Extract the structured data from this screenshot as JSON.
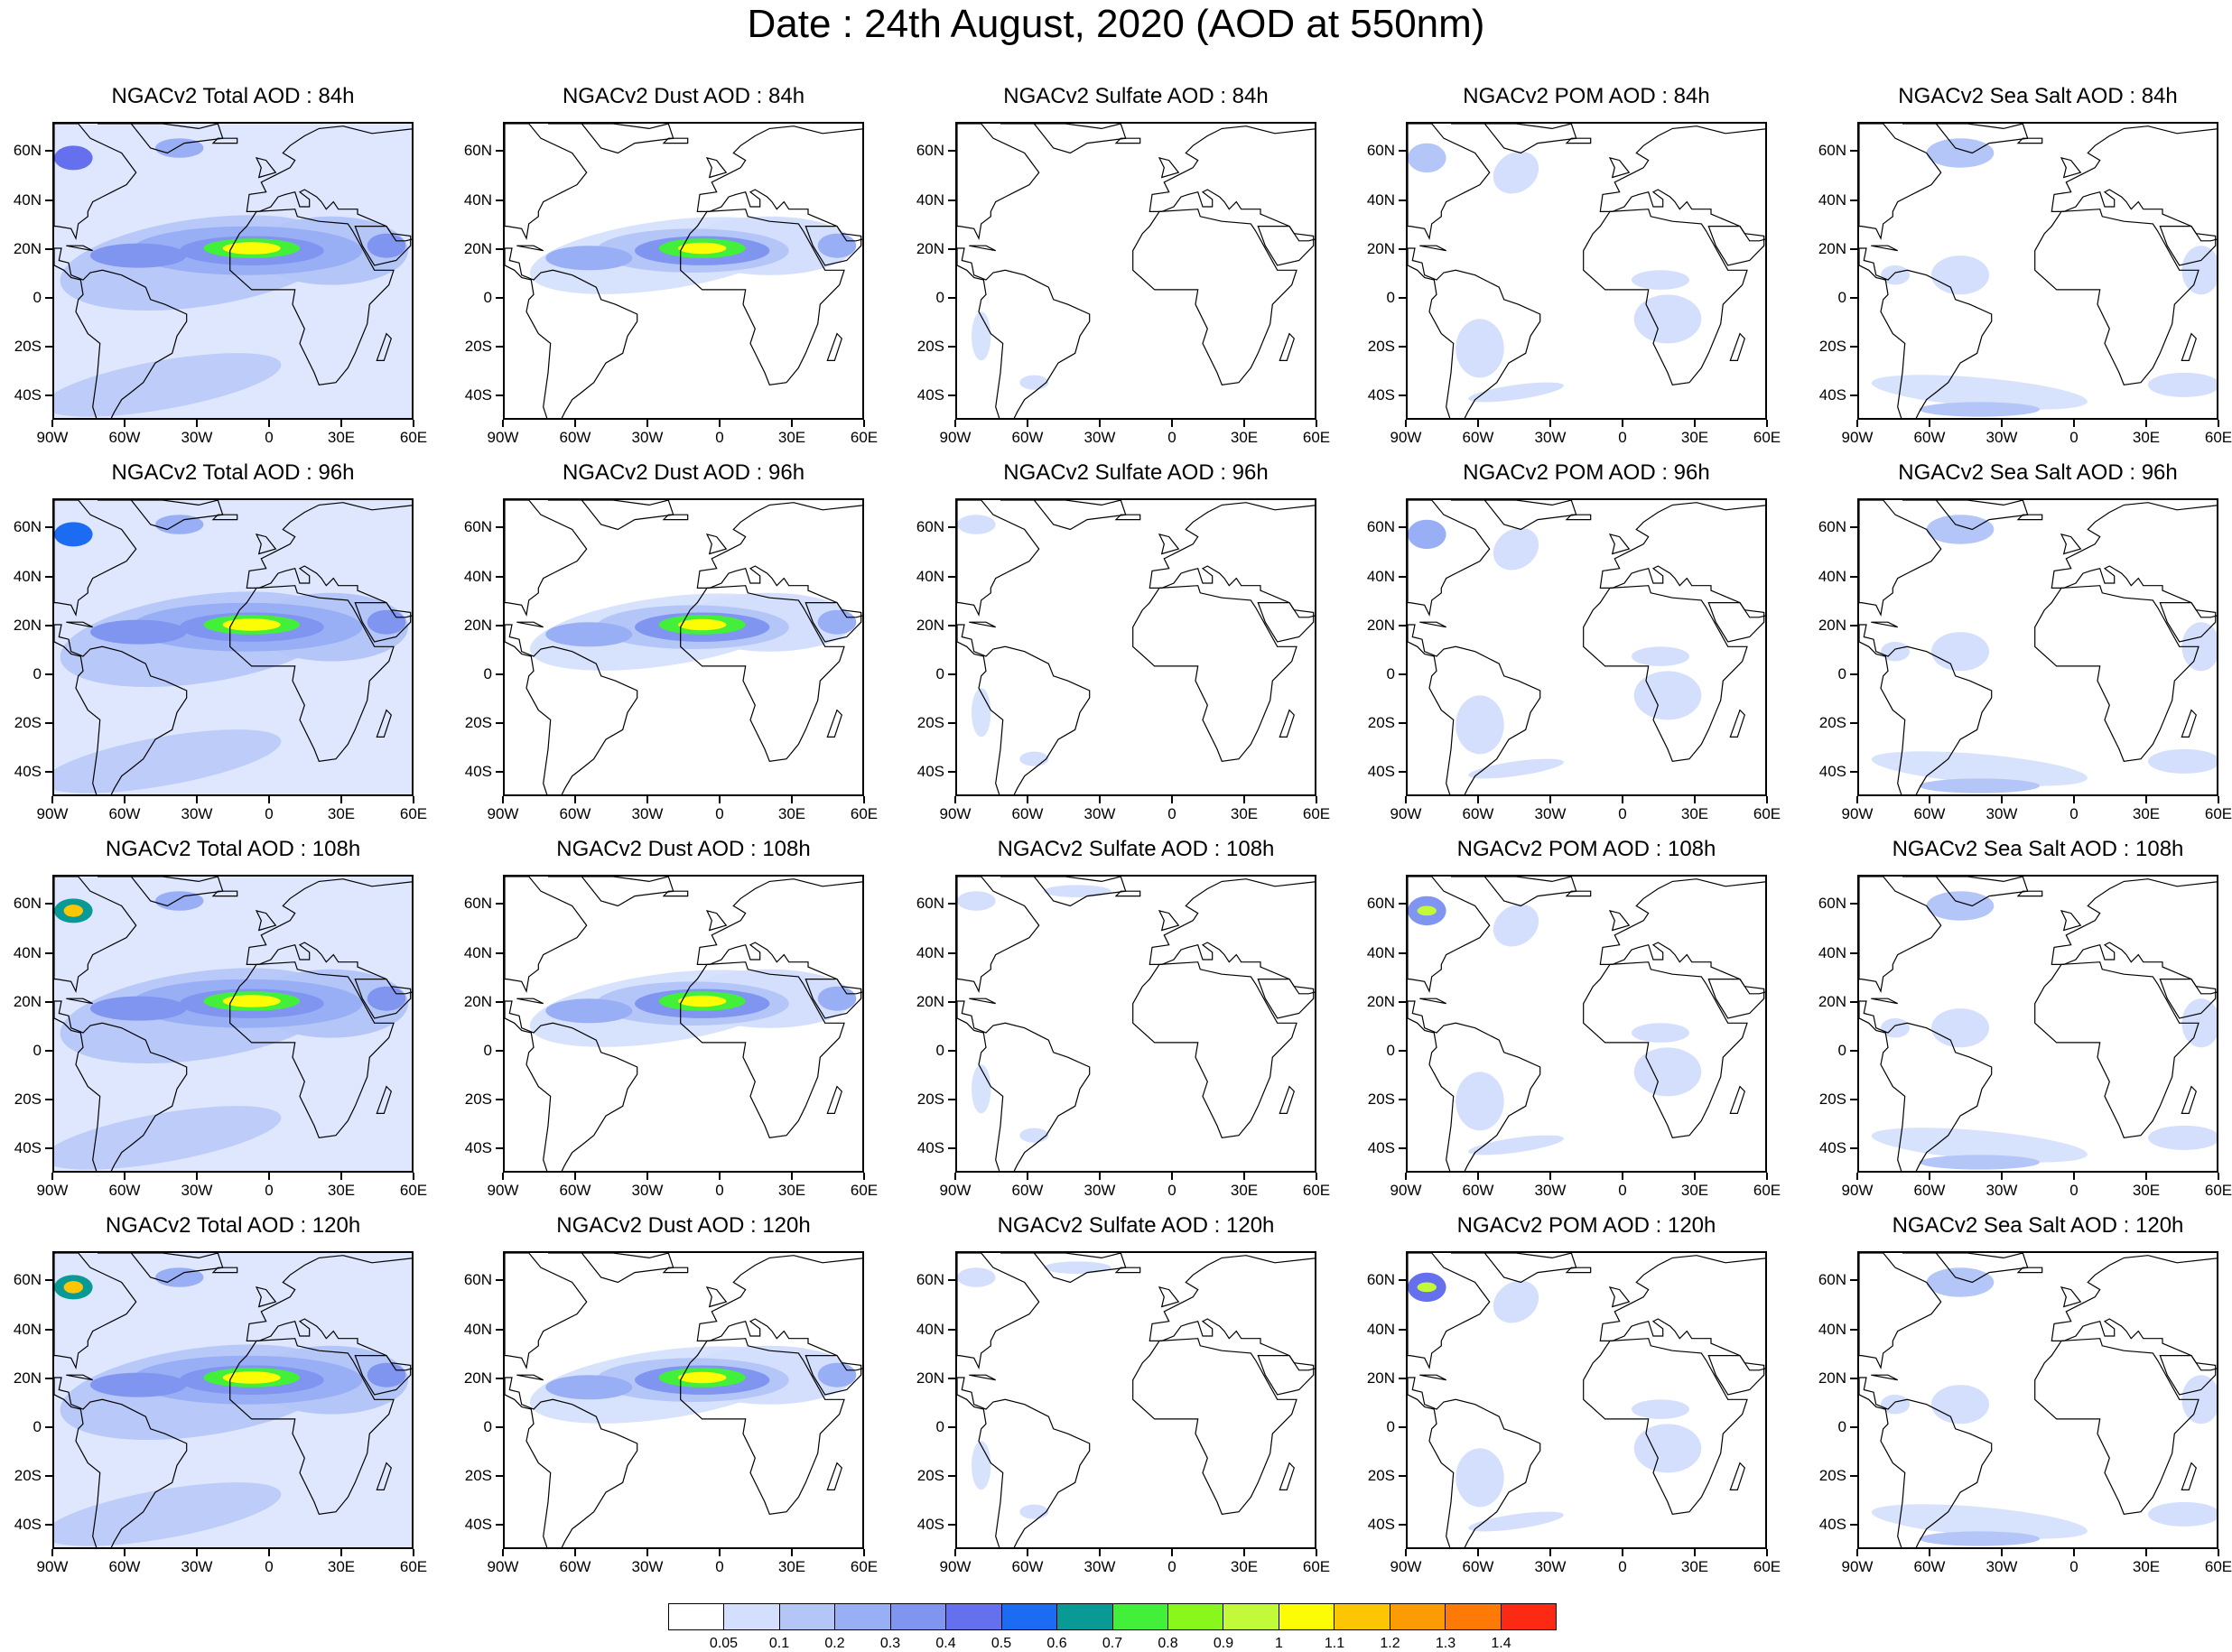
{
  "title": "Date : 24th August, 2020 (AOD at 550nm)",
  "longitude_ticks": [
    "90W",
    "60W",
    "30W",
    "0",
    "30E",
    "60E"
  ],
  "latitude_ticks": [
    "60N",
    "40N",
    "20N",
    "0",
    "20S",
    "40S"
  ],
  "panels": [
    [
      {
        "title": "NGACv2 Total AOD : 84h",
        "species": "total",
        "lead": "84h"
      },
      {
        "title": "NGACv2 Dust AOD : 84h",
        "species": "dust",
        "lead": "84h"
      },
      {
        "title": "NGACv2 Sulfate AOD : 84h",
        "species": "sulfate",
        "lead": "84h"
      },
      {
        "title": "NGACv2 POM AOD : 84h",
        "species": "pom",
        "lead": "84h"
      },
      {
        "title": "NGACv2 Sea Salt AOD : 84h",
        "species": "seasalt",
        "lead": "84h"
      }
    ],
    [
      {
        "title": "NGACv2 Total AOD : 96h",
        "species": "total",
        "lead": "96h"
      },
      {
        "title": "NGACv2 Dust AOD : 96h",
        "species": "dust",
        "lead": "96h"
      },
      {
        "title": "NGACv2 Sulfate AOD : 96h",
        "species": "sulfate",
        "lead": "96h"
      },
      {
        "title": "NGACv2 POM AOD : 96h",
        "species": "pom",
        "lead": "96h"
      },
      {
        "title": "NGACv2 Sea Salt AOD : 96h",
        "species": "seasalt",
        "lead": "96h"
      }
    ],
    [
      {
        "title": "NGACv2 Total AOD : 108h",
        "species": "total",
        "lead": "108h"
      },
      {
        "title": "NGACv2 Dust AOD : 108h",
        "species": "dust",
        "lead": "108h"
      },
      {
        "title": "NGACv2 Sulfate AOD : 108h",
        "species": "sulfate",
        "lead": "108h"
      },
      {
        "title": "NGACv2 POM AOD : 108h",
        "species": "pom",
        "lead": "108h"
      },
      {
        "title": "NGACv2 Sea Salt AOD : 108h",
        "species": "seasalt",
        "lead": "108h"
      }
    ],
    [
      {
        "title": "NGACv2 Total AOD : 120h",
        "species": "total",
        "lead": "120h"
      },
      {
        "title": "NGACv2 Dust AOD : 120h",
        "species": "dust",
        "lead": "120h"
      },
      {
        "title": "NGACv2 Sulfate AOD : 120h",
        "species": "sulfate",
        "lead": "120h"
      },
      {
        "title": "NGACv2 POM AOD : 120h",
        "species": "pom",
        "lead": "120h"
      },
      {
        "title": "NGACv2 Sea Salt  AOD : 120h",
        "species": "seasalt",
        "lead": "120h"
      }
    ]
  ],
  "colorbar": {
    "labels": [
      "0.05",
      "0.1",
      "0.2",
      "0.3",
      "0.4",
      "0.5",
      "0.6",
      "0.7",
      "0.8",
      "0.9",
      "1",
      "1.1",
      "1.2",
      "1.3",
      "1.4"
    ],
    "colors": [
      "#ffffff",
      "#d3dffc",
      "#b4c5f8",
      "#98aef5",
      "#7f95f0",
      "#6470ed",
      "#1b6cf2",
      "#0a9a96",
      "#42f03a",
      "#8af71c",
      "#c2fa3a",
      "#fcfc05",
      "#fcc605",
      "#fc9c05",
      "#fc7a05",
      "#fc2a12"
    ]
  }
}
